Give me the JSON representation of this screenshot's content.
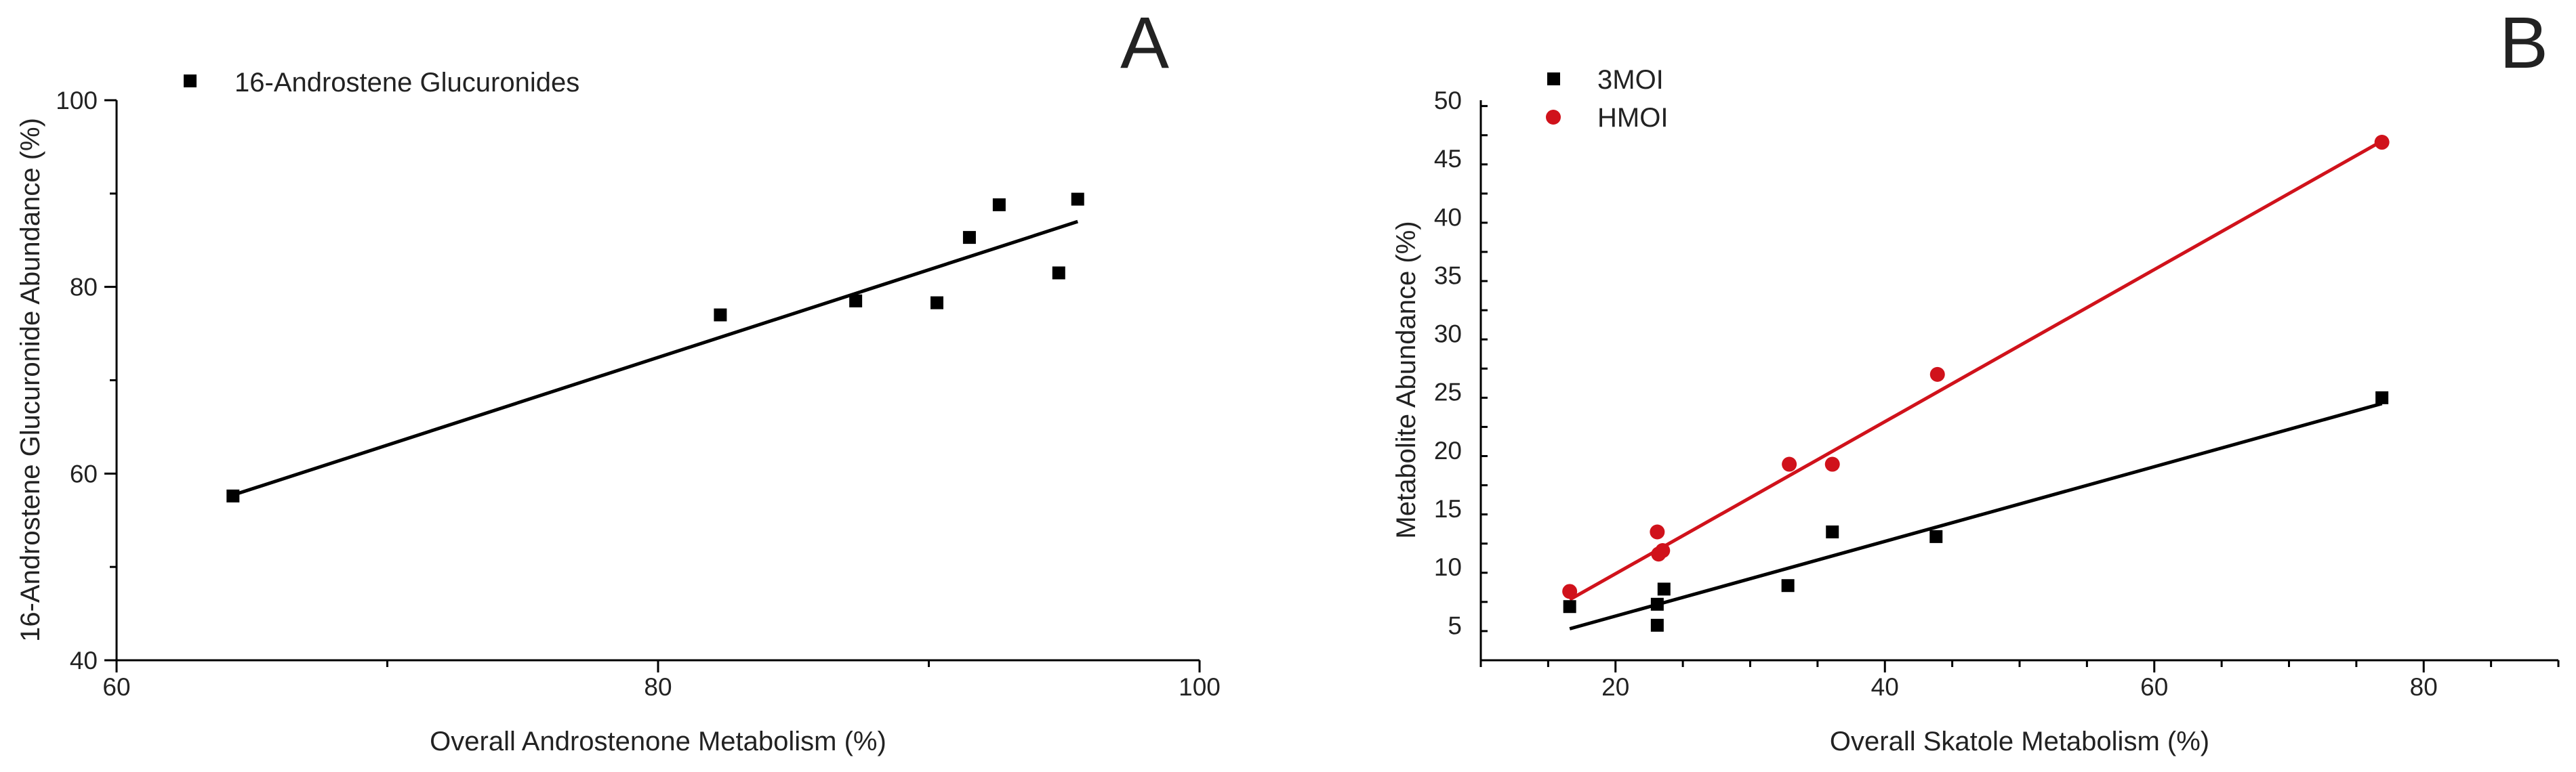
{
  "figure": {
    "background": "#ffffff"
  },
  "chart_data": [
    {
      "panel_label": "A",
      "type": "scatter",
      "title": "",
      "xlabel": "Overall Androstenone Metabolism (%)",
      "ylabel": "16-Androstene Glucuronide Abundance (%)",
      "xlim": [
        60,
        100
      ],
      "ylim": [
        40,
        100
      ],
      "x_ticks": [
        60,
        80,
        100
      ],
      "y_ticks": [
        40,
        60,
        80,
        100
      ],
      "x_minor_step": 10,
      "y_minor_step": 10,
      "legend_position": "top-left",
      "series": [
        {
          "name": "16-Androstene Glucuronides",
          "marker": "square",
          "color": "#000000",
          "x": [
            64.3,
            82.3,
            87.3,
            90.3,
            91.5,
            92.6,
            94.8,
            95.5
          ],
          "y": [
            57.6,
            77.0,
            78.5,
            78.3,
            85.3,
            88.8,
            81.5,
            89.4
          ],
          "fit": {
            "x": [
              64.3,
              95.5
            ],
            "y": [
              57.7,
              87.0
            ]
          }
        }
      ]
    },
    {
      "panel_label": "B",
      "type": "scatter",
      "title": "",
      "xlabel": "Overall Skatole Metabolism (%)",
      "ylabel": "Metabolite Abundance (%)",
      "xlim": [
        10,
        90
      ],
      "ylim": [
        2,
        50
      ],
      "x_ticks": [
        20,
        40,
        60,
        80
      ],
      "y_ticks": [
        5,
        10,
        15,
        20,
        25,
        30,
        35,
        40,
        45,
        50
      ],
      "x_minor_step": 5,
      "y_minor_step": 2.5,
      "legend_position": "top-left",
      "series": [
        {
          "name": "3MOI",
          "marker": "square",
          "color": "#000000",
          "x": [
            16.6,
            23.1,
            23.1,
            23.6,
            32.8,
            36.1,
            43.8,
            76.9
          ],
          "y": [
            6.6,
            6.8,
            5.0,
            8.1,
            8.4,
            13.0,
            12.6,
            24.5
          ],
          "fit": {
            "x": [
              16.6,
              76.9
            ],
            "y": [
              4.7,
              24.0
            ]
          }
        },
        {
          "name": "HMOI",
          "marker": "circle",
          "color": "#d0121b",
          "x": [
            16.6,
            23.1,
            23.2,
            23.5,
            32.9,
            36.1,
            43.9,
            76.9
          ],
          "y": [
            7.9,
            13.0,
            11.1,
            11.4,
            18.8,
            18.8,
            26.5,
            46.4
          ],
          "fit": {
            "x": [
              16.6,
              76.9
            ],
            "y": [
              7.2,
              46.5
            ]
          }
        }
      ]
    }
  ]
}
